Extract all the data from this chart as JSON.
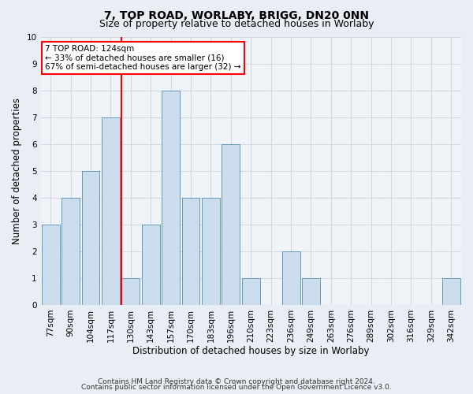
{
  "title": "7, TOP ROAD, WORLABY, BRIGG, DN20 0NN",
  "subtitle": "Size of property relative to detached houses in Worlaby",
  "xlabel": "Distribution of detached houses by size in Worlaby",
  "ylabel": "Number of detached properties",
  "bins": [
    "77sqm",
    "90sqm",
    "104sqm",
    "117sqm",
    "130sqm",
    "143sqm",
    "157sqm",
    "170sqm",
    "183sqm",
    "196sqm",
    "210sqm",
    "223sqm",
    "236sqm",
    "249sqm",
    "263sqm",
    "276sqm",
    "289sqm",
    "302sqm",
    "316sqm",
    "329sqm",
    "342sqm"
  ],
  "bin_edges": [
    77,
    90,
    104,
    117,
    130,
    143,
    157,
    170,
    183,
    196,
    210,
    223,
    236,
    249,
    263,
    276,
    289,
    302,
    316,
    329,
    342,
    355
  ],
  "values": [
    3,
    4,
    5,
    7,
    1,
    3,
    8,
    4,
    4,
    6,
    1,
    0,
    2,
    1,
    0,
    0,
    0,
    0,
    0,
    0,
    1
  ],
  "bar_facecolor": "#ccdded",
  "bar_edgecolor": "#6699bb",
  "grid_color": "#d0d8e0",
  "background_color": "#e8eef4",
  "plot_bg_color": "#f0f4f8",
  "redline_x": 124,
  "annotation_line1": "7 TOP ROAD: 124sqm",
  "annotation_line2": "← 33% of detached houses are smaller (16)",
  "annotation_line3": "67% of semi-detached houses are larger (32) →",
  "annotation_box_color": "white",
  "annotation_box_edgecolor": "red",
  "ylim": [
    0,
    10
  ],
  "yticks": [
    0,
    1,
    2,
    3,
    4,
    5,
    6,
    7,
    8,
    9,
    10
  ],
  "footnote1": "Contains HM Land Registry data © Crown copyright and database right 2024.",
  "footnote2": "Contains public sector information licensed under the Open Government Licence v3.0.",
  "title_fontsize": 10,
  "subtitle_fontsize": 9,
  "xlabel_fontsize": 8.5,
  "ylabel_fontsize": 8.5,
  "tick_fontsize": 7.5,
  "annotation_fontsize": 7.5,
  "footnote_fontsize": 6.5
}
